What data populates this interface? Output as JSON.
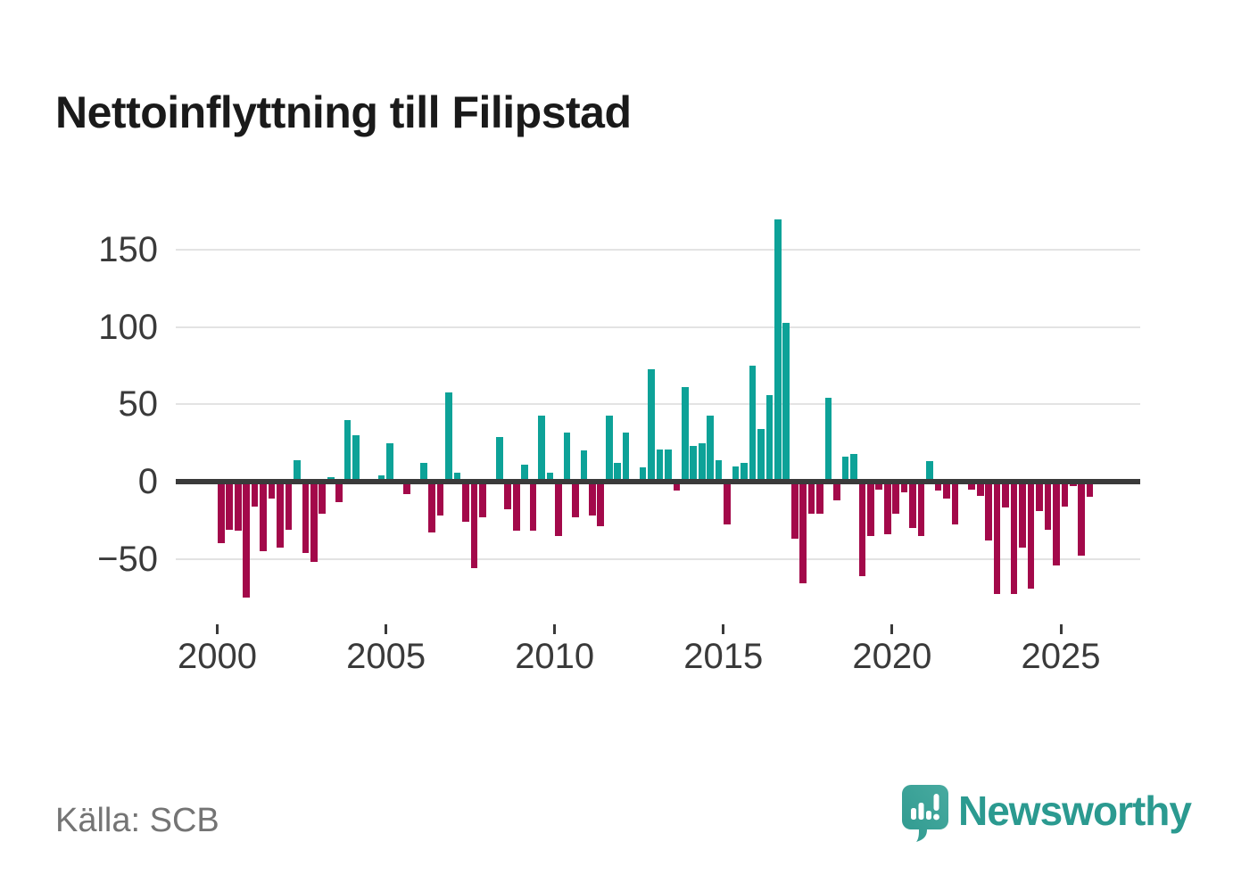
{
  "title": "Nettoinflyttning till Filipstad",
  "source": "Källa: SCB",
  "logo": {
    "text": "Newsworthy",
    "icon": "speech-bubble-bar-chart-icon",
    "color": "#2b9a90"
  },
  "colors": {
    "positive": "#0da298",
    "negative": "#a3094a",
    "zero_line": "#3a3a3a",
    "gridline": "#e3e3e3",
    "axis_text": "#3a3a3a",
    "title_text": "#1a1a1a",
    "source_text": "#747474"
  },
  "y_axis": {
    "ticks": [
      {
        "label": "150",
        "value": 150
      },
      {
        "label": "100",
        "value": 100
      },
      {
        "label": "50",
        "value": 50
      },
      {
        "label": "0",
        "value": 0
      },
      {
        "label": "−50",
        "value": -50
      }
    ]
  },
  "x_axis": {
    "ticks": [
      {
        "label": "2000",
        "year": 2000
      },
      {
        "label": "2005",
        "year": 2005
      },
      {
        "label": "2010",
        "year": 2010
      },
      {
        "label": "2015",
        "year": 2015
      },
      {
        "label": "2020",
        "year": 2020
      },
      {
        "label": "2025",
        "year": 2025
      }
    ]
  },
  "chart_data": {
    "type": "bar",
    "title": "Nettoinflyttning till Filipstad",
    "xlabel": "",
    "ylabel": "",
    "ylim": [
      -90,
      180
    ],
    "gridlines": [
      150,
      100,
      50,
      0,
      -50
    ],
    "legend": "none",
    "frequency": "quarterly",
    "categories": [
      "2000Q1",
      "2000Q2",
      "2000Q3",
      "2000Q4",
      "2001Q1",
      "2001Q2",
      "2001Q3",
      "2001Q4",
      "2002Q1",
      "2002Q2",
      "2002Q3",
      "2002Q4",
      "2003Q1",
      "2003Q2",
      "2003Q3",
      "2003Q4",
      "2004Q1",
      "2004Q2",
      "2004Q3",
      "2004Q4",
      "2005Q1",
      "2005Q2",
      "2005Q3",
      "2005Q4",
      "2006Q1",
      "2006Q2",
      "2006Q3",
      "2006Q4",
      "2007Q1",
      "2007Q2",
      "2007Q3",
      "2007Q4",
      "2008Q1",
      "2008Q2",
      "2008Q3",
      "2008Q4",
      "2009Q1",
      "2009Q2",
      "2009Q3",
      "2009Q4",
      "2010Q1",
      "2010Q2",
      "2010Q3",
      "2010Q4",
      "2011Q1",
      "2011Q2",
      "2011Q3",
      "2011Q4",
      "2012Q1",
      "2012Q2",
      "2012Q3",
      "2012Q4",
      "2013Q1",
      "2013Q2",
      "2013Q3",
      "2013Q4",
      "2014Q1",
      "2014Q2",
      "2014Q3",
      "2014Q4",
      "2015Q1",
      "2015Q2",
      "2015Q3",
      "2015Q4",
      "2016Q1",
      "2016Q2",
      "2016Q3",
      "2016Q4",
      "2017Q1",
      "2017Q2",
      "2017Q3",
      "2017Q4",
      "2018Q1",
      "2018Q2",
      "2018Q3",
      "2018Q4",
      "2019Q1",
      "2019Q2",
      "2019Q3",
      "2019Q4",
      "2020Q1",
      "2020Q2",
      "2020Q3",
      "2020Q4",
      "2021Q1",
      "2021Q2",
      "2021Q3",
      "2021Q4",
      "2022Q1",
      "2022Q2",
      "2022Q3",
      "2022Q4",
      "2023Q1",
      "2023Q2",
      "2023Q3",
      "2023Q4",
      "2024Q1",
      "2024Q2",
      "2024Q3",
      "2024Q4",
      "2025Q1",
      "2025Q2",
      "2025Q3",
      "2025Q4"
    ],
    "values": [
      -40,
      -31,
      -32,
      -75,
      -16,
      -45,
      -11,
      -43,
      -31,
      14,
      -46,
      -52,
      -21,
      3,
      -13,
      40,
      30,
      0,
      0,
      4,
      25,
      0,
      -8,
      2,
      12,
      -33,
      -22,
      58,
      6,
      -26,
      -56,
      -23,
      0,
      29,
      -18,
      -32,
      11,
      -32,
      43,
      6,
      -35,
      32,
      -23,
      20,
      -22,
      -29,
      43,
      12,
      32,
      0,
      9,
      73,
      21,
      21,
      -6,
      61,
      23,
      25,
      43,
      14,
      -28,
      10,
      12,
      75,
      34,
      56,
      170,
      103,
      -37,
      -66,
      -21,
      -21,
      54,
      -12,
      16,
      18,
      -61,
      -35,
      -5,
      -34,
      -21,
      -7,
      -30,
      -35,
      13,
      -6,
      -11,
      -28,
      0,
      -5,
      -9,
      -38,
      -73,
      -17,
      -73,
      -43,
      -69,
      -19,
      -31,
      -54,
      -16,
      -3,
      -48,
      -10
    ]
  }
}
